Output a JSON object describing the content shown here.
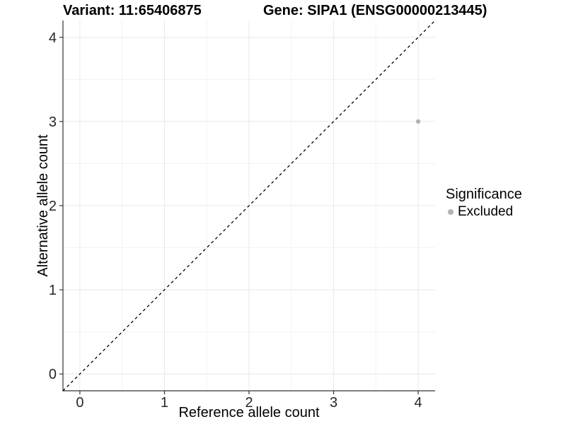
{
  "legend": {
    "title": "Significance",
    "items": [
      {
        "label": "Excluded",
        "color": "#b3b3b3"
      }
    ]
  },
  "style": {
    "grid_major": "#e8e8e8",
    "grid_minor": "#f3f3f3",
    "axis_line": "#333333",
    "tick_text": "#262626",
    "point_color": "#b3b3b3",
    "reference_line_color": "#000000"
  },
  "chart_data": {
    "type": "scatter",
    "title_left": "Variant: 11:65406875",
    "title_right": "Gene: SIPA1 (ENSG00000213445)",
    "xlabel": "Reference allele count",
    "ylabel": "Alternative allele count",
    "xlim": [
      -0.2,
      4.2
    ],
    "ylim": [
      -0.2,
      4.2
    ],
    "x_ticks": [
      0,
      1,
      2,
      3,
      4
    ],
    "y_ticks": [
      0,
      1,
      2,
      3,
      4
    ],
    "minor_ticks": [
      0.5,
      1.5,
      2.5,
      3.5
    ],
    "grid": "major and minor, light grey on white",
    "legend_position": "right",
    "series": [
      {
        "name": "Excluded",
        "color": "#b3b3b3",
        "marker": "circle",
        "points": [
          [
            4,
            3
          ]
        ]
      }
    ],
    "reference_line": {
      "kind": "identity y=x",
      "style": "dashed",
      "color": "#000000",
      "x": [
        -0.2,
        4.2
      ],
      "y": [
        -0.2,
        4.2
      ]
    }
  }
}
